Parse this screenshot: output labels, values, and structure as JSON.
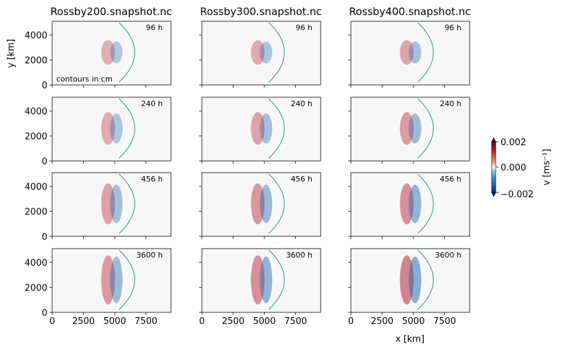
{
  "chart_data": {
    "type": "heatmap",
    "grid": {
      "rows": 4,
      "cols": 3
    },
    "column_titles": [
      "Rossby200.snapshot.nc",
      "Rossby300.snapshot.nc",
      "Rossby400.snapshot.nc"
    ],
    "row_times": [
      "96 h",
      "240 h",
      "456 h",
      "3600 h"
    ],
    "xlabel": "x [km]",
    "ylabel": "y [km]",
    "note": "contours in cm",
    "xlim": [
      0,
      9500
    ],
    "ylim": [
      0,
      5100
    ],
    "xticks": [
      0,
      2500,
      5000,
      7500
    ],
    "yticks": [
      0,
      2000,
      4000
    ],
    "colorbar": {
      "label": "v [ms⁻¹]",
      "min": -0.002,
      "max": 0.002,
      "ticks": [
        "0.002",
        "0.000",
        "−0.002"
      ],
      "colors": {
        "negative": "#053061",
        "zero": "#f7f7f7",
        "positive": "#67001f"
      }
    },
    "grid_on": false
  }
}
